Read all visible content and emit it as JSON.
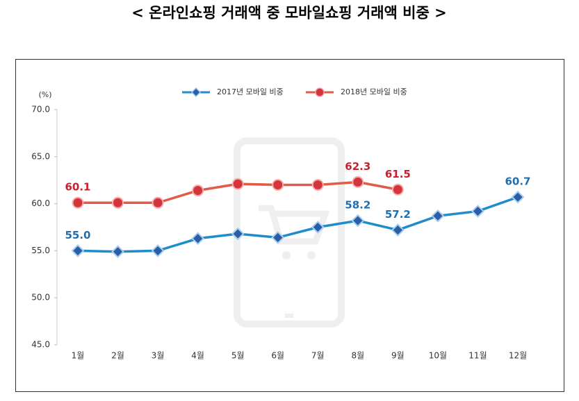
{
  "chart_data": {
    "type": "line",
    "title": "< 온라인쇼핑 거래액 중 모바일쇼핑 거래액 비중 >",
    "y_axis_label": "(%)",
    "categories": [
      "1월",
      "2월",
      "3월",
      "4월",
      "5월",
      "6월",
      "7월",
      "8월",
      "9월",
      "10월",
      "11월",
      "12월"
    ],
    "series": [
      {
        "name": "2017년 모바일 비중",
        "color": "#1f8ccc",
        "marker": "diamond",
        "label_color": "#1f6fb0",
        "values": [
          55.0,
          54.9,
          55.0,
          56.3,
          56.8,
          56.4,
          57.5,
          58.2,
          57.2,
          58.7,
          59.2,
          60.7
        ],
        "value_labels": [
          "55.0",
          null,
          null,
          null,
          null,
          null,
          null,
          "58.2",
          "57.2",
          null,
          null,
          "60.7"
        ]
      },
      {
        "name": "2018년 모바일 비중",
        "color": "#e25a48",
        "marker": "circle",
        "label_color": "#c8202f",
        "values": [
          60.1,
          60.1,
          60.1,
          61.4,
          62.1,
          62.0,
          62.0,
          62.3,
          61.5,
          null,
          null,
          null
        ],
        "value_labels": [
          "60.1",
          null,
          null,
          null,
          null,
          null,
          null,
          "62.3",
          "61.5",
          null,
          null,
          null
        ]
      }
    ],
    "ylim": [
      45,
      70
    ],
    "yticks": [
      {
        "value": 45,
        "label": "45.0"
      },
      {
        "value": 50,
        "label": "50.0"
      },
      {
        "value": 55,
        "label": "55.0"
      },
      {
        "value": 60,
        "label": "60.0"
      },
      {
        "value": 65,
        "label": "65.0"
      },
      {
        "value": 70,
        "label": "70.0"
      }
    ],
    "grid": false,
    "legend": "top"
  }
}
